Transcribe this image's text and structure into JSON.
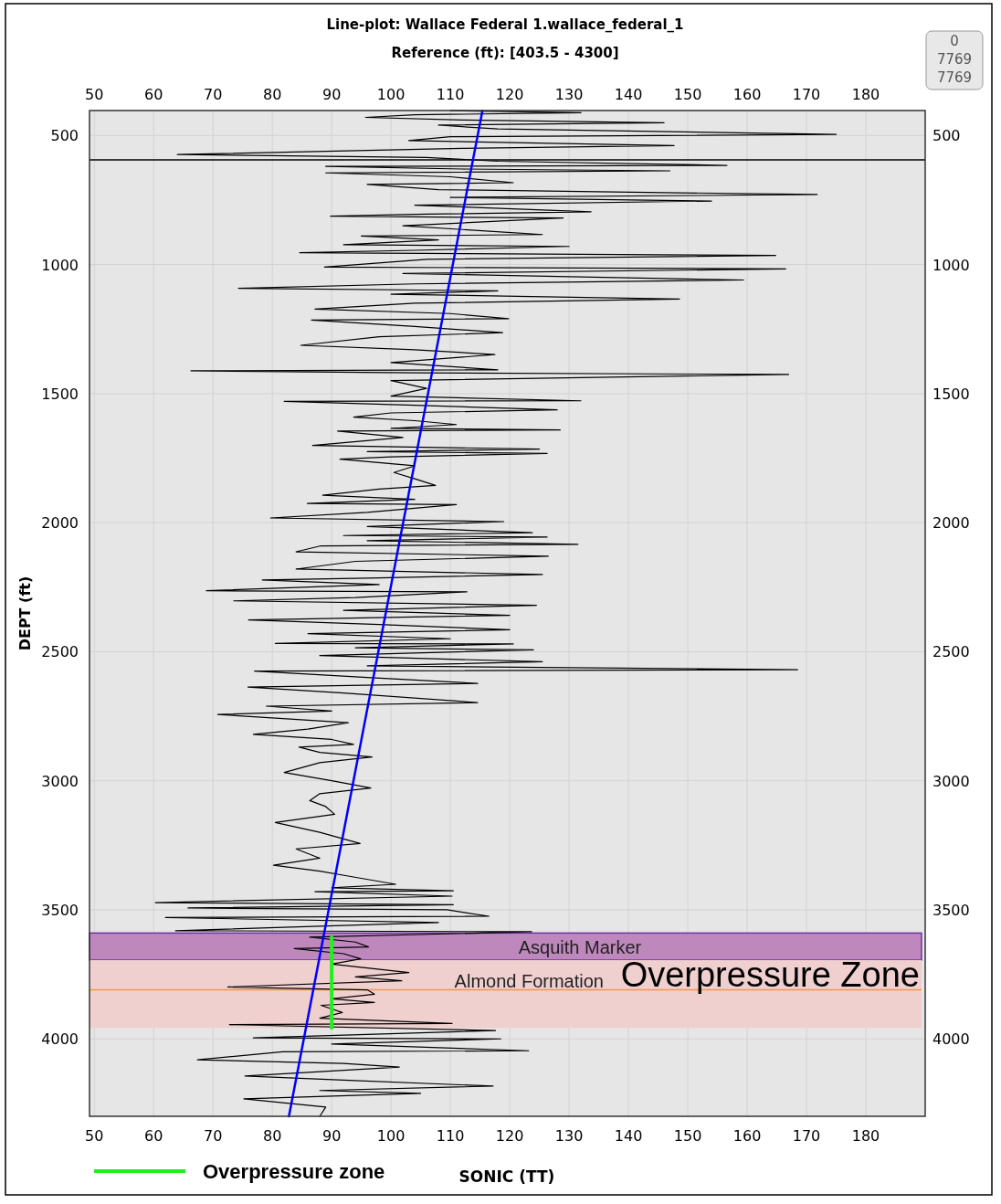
{
  "chart_data": {
    "type": "line",
    "title": "Line-plot: Wallace Federal 1.wallace_federal_1",
    "subtitle": "Reference (ft): [403.5 - 4300]",
    "xlabel": "SONIC (TT)",
    "ylabel": "DEPT (ft)",
    "annotations": [
      "0",
      "7769",
      "7769"
    ],
    "xlim": [
      49.2,
      190
    ],
    "xticks": [
      50,
      60,
      70,
      80,
      90,
      100,
      110,
      120,
      130,
      140,
      150,
      160,
      170,
      180
    ],
    "x2lim": [
      49.2,
      190
    ],
    "x2ticks": [
      50,
      60,
      70,
      80,
      90,
      100,
      110,
      120,
      130,
      140,
      150,
      160,
      170,
      180
    ],
    "ylim": [
      4300,
      403.5
    ],
    "yticks": [
      500,
      1000,
      1500,
      2000,
      2500,
      3000,
      3500,
      4000
    ],
    "y2lim": [
      4300,
      403.5
    ],
    "y2ticks": [
      500,
      1000,
      1500,
      2000,
      2500,
      3000,
      3500,
      4000
    ],
    "grid": true,
    "legend": "bottom",
    "marker": "none",
    "line_style": "solid",
    "bands": [
      {
        "axis": "y",
        "from": 3590,
        "to": 3695,
        "label": "Asquith Marker",
        "color": "#bf88bd"
      },
      {
        "axis": "y",
        "from": 3695,
        "to": 3958,
        "label": "Overpressure Zone",
        "color": "#f0cfcf"
      }
    ],
    "ref_lines": [
      {
        "axis": "y",
        "value": 595,
        "label": null,
        "color": "#000000"
      },
      {
        "axis": "y",
        "value": 3810,
        "label": "Almond Formation",
        "color": "#f0a020"
      }
    ],
    "series": [
      {
        "color": "#000000",
        "x": [
          110,
          132,
          104,
          95.7,
          112,
          146,
          108,
          118,
          175,
          110,
          103,
          147.7,
          112,
          64,
          106,
          118,
          156.6,
          89,
          112,
          147,
          89,
          110,
          120.6,
          96,
          108,
          171.8,
          110,
          154,
          104,
          133.7,
          106,
          89.8,
          129,
          102,
          125.5,
          95,
          108,
          92,
          130,
          104,
          84.6,
          164.8,
          106,
          88.8,
          166.5,
          102,
          159.4,
          104,
          74.3,
          118,
          100,
          148.6,
          104,
          87.2,
          110,
          119.8,
          86.6,
          104,
          118.8,
          98,
          84.8,
          104,
          117.5,
          100,
          118,
          66.3,
          104,
          167,
          100,
          106,
          100,
          132,
          82,
          104,
          128,
          100,
          93.7,
          104,
          111,
          100,
          128.5,
          91,
          102,
          86.8,
          125,
          96,
          126.3,
          100,
          91.4,
          104,
          100.5,
          104,
          107.5,
          98,
          88.5,
          104,
          85.9,
          111,
          96,
          79.7,
          119,
          96,
          123.8,
          92,
          126.3,
          96,
          131.5,
          88.2,
          84,
          126.5,
          94,
          84,
          125.5,
          96,
          78.3,
          98,
          68.9,
          112.8,
          94,
          73.5,
          124.5,
          92,
          120,
          76,
          98,
          120,
          86,
          110,
          80.5,
          120.6,
          94,
          124,
          88,
          125.5,
          96,
          168.5,
          77,
          96,
          114.6,
          75.9,
          92,
          114.6,
          79,
          90,
          70.8,
          92.8,
          86,
          76.8,
          90,
          93.7,
          84.5,
          88,
          96.8,
          88,
          82,
          90,
          96.6,
          88,
          86.3,
          89,
          90.5,
          80.5,
          88,
          94.8,
          84,
          88,
          80.2,
          88,
          93,
          100.8,
          90,
          110.5,
          87.2,
          110.3,
          60.3,
          110.5,
          65.8,
          109.4,
          116.5,
          62,
          108,
          63.7,
          123.7,
          86.3,
          94,
          96.2,
          83.7,
          92,
          94.9,
          90,
          103,
          94,
          101.8,
          72.5,
          96,
          97.2,
          90,
          97.2,
          88.2,
          91.8,
          88,
          110.3,
          72.8,
          117.6,
          76.8,
          118.5,
          90,
          123.2,
          81.7,
          67.4,
          92,
          101.4,
          75.4,
          92,
          117.2,
          88,
          105,
          75.2,
          89,
          88
        ],
        "values": [
          404,
          412,
          420,
          430,
          440,
          451,
          460,
          475,
          496,
          505,
          520,
          539,
          550,
          574,
          585,
          600,
          616,
          620,
          630,
          637,
          645,
          660,
          683,
          690,
          710,
          729,
          740,
          754,
          770,
          796,
          805,
          813,
          820,
          850,
          884,
          890,
          905,
          923,
          930,
          945,
          954,
          965,
          980,
          1010,
          1017,
          1035,
          1060,
          1075,
          1092,
          1102,
          1115,
          1134,
          1150,
          1173,
          1190,
          1210,
          1215,
          1240,
          1264,
          1280,
          1313,
          1330,
          1349,
          1380,
          1408,
          1412,
          1420,
          1426,
          1450,
          1480,
          1510,
          1528,
          1530,
          1545,
          1563,
          1575,
          1591,
          1605,
          1620,
          1635,
          1641,
          1645,
          1670,
          1701,
          1715,
          1725,
          1732,
          1745,
          1754,
          1780,
          1806,
          1830,
          1856,
          1870,
          1894,
          1910,
          1926,
          1930,
          1960,
          1982,
          1996,
          2015,
          2039,
          2050,
          2056,
          2070,
          2084,
          2090,
          2113,
          2130,
          2150,
          2180,
          2201,
          2215,
          2222,
          2240,
          2264,
          2268,
          2290,
          2303,
          2320,
          2340,
          2359,
          2377,
          2395,
          2415,
          2430,
          2450,
          2468,
          2470,
          2485,
          2493,
          2515,
          2539,
          2555,
          2570,
          2575,
          2600,
          2623,
          2637,
          2660,
          2697,
          2711,
          2730,
          2743,
          2775,
          2800,
          2820,
          2840,
          2859,
          2870,
          2890,
          2908,
          2930,
          2968,
          3000,
          3028,
          3050,
          3077,
          3100,
          3130,
          3162,
          3200,
          3243,
          3264,
          3300,
          3327,
          3350,
          3370,
          3401,
          3415,
          3426,
          3430,
          3447,
          3472,
          3480,
          3493,
          3500,
          3525,
          3530,
          3549,
          3581,
          3585,
          3606,
          3625,
          3644,
          3650,
          3670,
          3690,
          3710,
          3743,
          3760,
          3775,
          3799,
          3810,
          3827,
          3845,
          3859,
          3870,
          3898,
          3920,
          3940,
          3945,
          3968,
          3996,
          4000,
          4020,
          4046,
          4050,
          4081,
          4095,
          4109,
          4144,
          4160,
          4183,
          4200,
          4211,
          4232,
          4264,
          4300
        ]
      },
      {
        "color": "#0000ff",
        "x": [
          115.4,
          82.8
        ],
        "values": [
          404,
          4300
        ]
      },
      {
        "name": "Overpressure zone",
        "color": "#22ee22",
        "x": [
          90,
          90
        ],
        "values": [
          3606,
          3958
        ]
      }
    ]
  }
}
